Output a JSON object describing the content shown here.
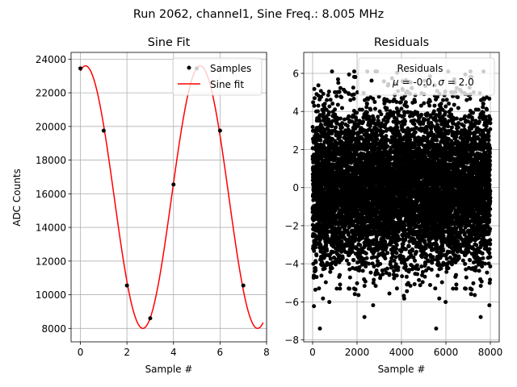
{
  "suptitle": "Run 2062, channel1, Sine Freq.: 8.005 MHz",
  "chart_data": [
    {
      "type": "line",
      "title": "Sine Fit",
      "xlabel": "Sample #",
      "ylabel": "ADC Counts",
      "xlim": [
        -0.4,
        8.0
      ],
      "ylim": [
        7200,
        24400
      ],
      "xticks": [
        0,
        2,
        4,
        6,
        8
      ],
      "xtick_labels": [
        "0",
        "2",
        "4",
        "6",
        "8"
      ],
      "yticks": [
        8000,
        10000,
        12000,
        14000,
        16000,
        18000,
        20000,
        22000,
        24000
      ],
      "ytick_labels": [
        "8000",
        "10000",
        "12000",
        "14000",
        "16000",
        "18000",
        "20000",
        "22000",
        "24000"
      ],
      "grid": true,
      "legend_position": "upper right",
      "series": [
        {
          "name": "Samples",
          "kind": "scatter",
          "color": "#000000",
          "x": [
            0,
            1,
            2,
            3,
            4,
            5,
            6,
            7
          ],
          "y": [
            23450,
            19750,
            10550,
            8600,
            16550,
            23450,
            19750,
            10550
          ]
        },
        {
          "name": "Sine fit",
          "kind": "line",
          "color": "#ff0000",
          "function": "sine",
          "x_range": [
            0,
            7.85
          ],
          "offset": 15800,
          "amplitude": 7800,
          "period": 4.93,
          "peak_at": 0.22
        }
      ]
    },
    {
      "type": "scatter",
      "title": "Residuals",
      "xlabel": "Sample #",
      "ylabel": "",
      "xlim": [
        -400,
        8400
      ],
      "ylim": [
        -8.1,
        7.1
      ],
      "xticks": [
        0,
        2000,
        4000,
        6000,
        8000
      ],
      "xtick_labels": [
        "0",
        "2000",
        "4000",
        "6000",
        "8000"
      ],
      "yticks": [
        -8,
        -6,
        -4,
        -2,
        0,
        2,
        4,
        6
      ],
      "ytick_labels": [
        "−8",
        "−6",
        "−4",
        "−2",
        "0",
        "2",
        "4",
        "6"
      ],
      "grid": true,
      "legend_position": "upper right",
      "legend_title": "Residuals",
      "series": [
        {
          "name": "$\\mu$ = -0.0, $\\sigma$ = 2.0",
          "name_display": {
            "mu_symbol": "μ",
            "mu_value": " = -0.0, ",
            "sigma_symbol": "σ",
            "sigma_value": " = 2.0"
          },
          "color": "#000000",
          "n_points": 8000,
          "x_range": [
            0,
            7999
          ],
          "mean": 0.0,
          "std": 2.0,
          "y_range": [
            -7.4,
            6.1
          ]
        }
      ]
    }
  ]
}
